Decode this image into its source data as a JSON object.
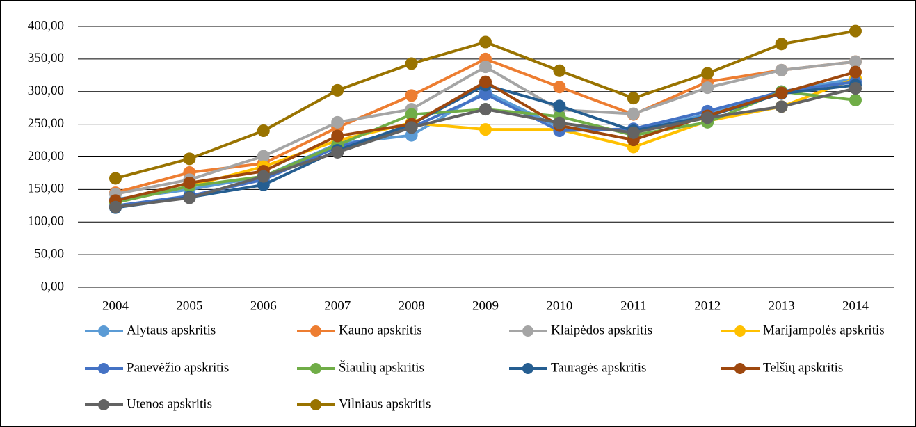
{
  "chart_data": {
    "type": "line",
    "categories": [
      "2004",
      "2005",
      "2006",
      "2007",
      "2008",
      "2009",
      "2010",
      "2011",
      "2012",
      "2013",
      "2014"
    ],
    "series": [
      {
        "name": "Alytaus apskritis",
        "color": "#5b9bd5",
        "values": [
          135,
          150,
          170,
          220,
          233,
          300,
          245,
          240,
          265,
          300,
          320
        ]
      },
      {
        "name": "Kauno apskritis",
        "color": "#ed7d31",
        "values": [
          145,
          176,
          190,
          245,
          294,
          350,
          307,
          265,
          315,
          333,
          346
        ]
      },
      {
        "name": "Klaipėdos apskritis",
        "color": "#a5a5a5",
        "values": [
          143,
          165,
          201,
          253,
          273,
          338,
          272,
          266,
          306,
          333,
          346
        ]
      },
      {
        "name": "Marijampolės apskritis",
        "color": "#ffc000",
        "values": [
          130,
          155,
          185,
          225,
          252,
          242,
          242,
          215,
          255,
          277,
          320
        ]
      },
      {
        "name": "Panevėžio apskritis",
        "color": "#4472c4",
        "values": [
          125,
          140,
          165,
          215,
          245,
          296,
          240,
          243,
          270,
          300,
          315
        ]
      },
      {
        "name": "Šiaulių apskritis",
        "color": "#70ad47",
        "values": [
          130,
          155,
          170,
          218,
          265,
          273,
          262,
          233,
          253,
          300,
          287
        ]
      },
      {
        "name": "Tauragės apskritis",
        "color": "#255e91",
        "values": [
          122,
          138,
          157,
          210,
          250,
          310,
          278,
          240,
          262,
          297,
          310
        ]
      },
      {
        "name": "Telšių apskritis",
        "color": "#9e480e",
        "values": [
          133,
          160,
          178,
          232,
          250,
          315,
          248,
          226,
          263,
          298,
          330
        ]
      },
      {
        "name": "Utenos apskritis",
        "color": "#636363",
        "values": [
          123,
          137,
          170,
          207,
          245,
          273,
          252,
          237,
          260,
          277,
          305
        ]
      },
      {
        "name": "Vilniaus apskritis",
        "color": "#997300",
        "values": [
          167,
          197,
          240,
          302,
          343,
          376,
          332,
          290,
          328,
          373,
          393
        ]
      }
    ],
    "ylim": [
      0,
      400
    ],
    "yticks": [
      {
        "value": 0,
        "label": "0,00"
      },
      {
        "value": 50,
        "label": "50,00"
      },
      {
        "value": 100,
        "label": "100,00"
      },
      {
        "value": 150,
        "label": "150,00"
      },
      {
        "value": 200,
        "label": "200,00"
      },
      {
        "value": 250,
        "label": "250,00"
      },
      {
        "value": 300,
        "label": "300,00"
      },
      {
        "value": 350,
        "label": "350,00"
      },
      {
        "value": 400,
        "label": "400,00"
      }
    ],
    "grid": true,
    "legend": "bottom"
  }
}
